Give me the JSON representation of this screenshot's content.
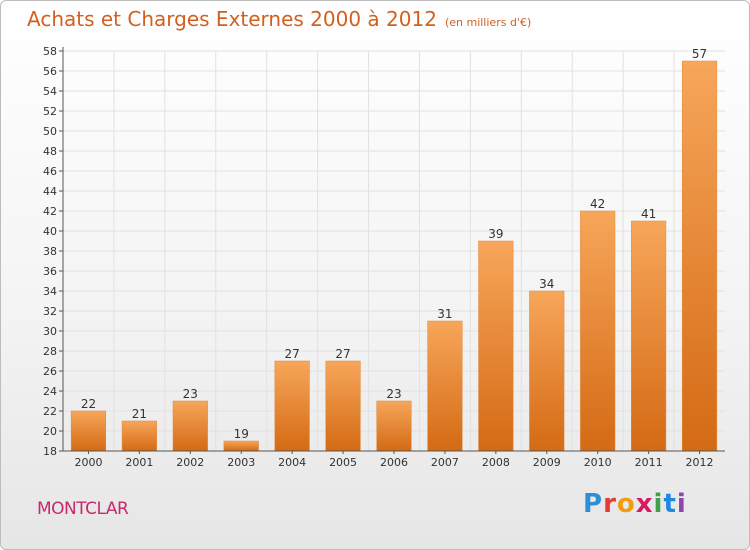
{
  "header": {
    "title": "Achats et Charges Externes 2000 à 2012",
    "subtitle": "(en milliers d'€)"
  },
  "footer": {
    "town": "MONTCLAR",
    "brand": "Proxiti"
  },
  "colors": {
    "bar_top": "#f7a65a",
    "bar_bottom": "#d46a14",
    "title": "#d2601e",
    "town": "#c8286e",
    "grid": "#e1e1e1",
    "axis": "#555555"
  },
  "chart_data": {
    "type": "bar",
    "title": "Achats et Charges Externes 2000 à 2012",
    "subtitle": "(en milliers d'€)",
    "categories": [
      "2000",
      "2001",
      "2002",
      "2003",
      "2004",
      "2005",
      "2006",
      "2007",
      "2008",
      "2009",
      "2010",
      "2011",
      "2012"
    ],
    "values": [
      22,
      21,
      23,
      19,
      27,
      27,
      23,
      31,
      39,
      34,
      42,
      41,
      57
    ],
    "ylim": [
      18,
      58
    ],
    "ytick_step": 2,
    "grid": true,
    "legend": "none"
  }
}
